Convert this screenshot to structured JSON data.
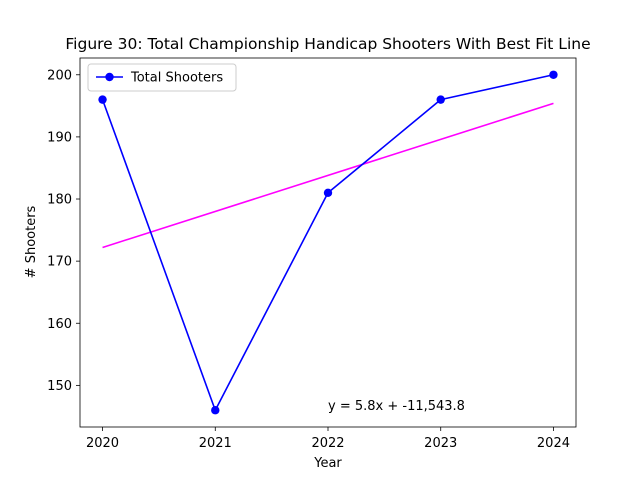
{
  "chart_data": {
    "type": "line",
    "title": "Figure 30: Total Championship Handicap Shooters With Best Fit Line",
    "xlabel": "Year",
    "ylabel": "# Shooters",
    "x": [
      2020,
      2021,
      2022,
      2023,
      2024
    ],
    "xticks": [
      "2020",
      "2021",
      "2022",
      "2023",
      "2024"
    ],
    "yticks": [
      150,
      160,
      170,
      180,
      190,
      200
    ],
    "xlim": [
      2019.8,
      2024.2
    ],
    "ylim": [
      143.3,
      202.7
    ],
    "grid": false,
    "legend_position": "top-left",
    "series": [
      {
        "name": "Total Shooters",
        "values": [
          196,
          146,
          181,
          196,
          200
        ],
        "color": "#0000ff",
        "marker": "circle"
      }
    ],
    "fit_line": {
      "x": [
        2020,
        2024
      ],
      "y": [
        172.2,
        195.4
      ],
      "color": "#ff00ff"
    },
    "annotation": "y = 5.8x + -11,543.8"
  }
}
